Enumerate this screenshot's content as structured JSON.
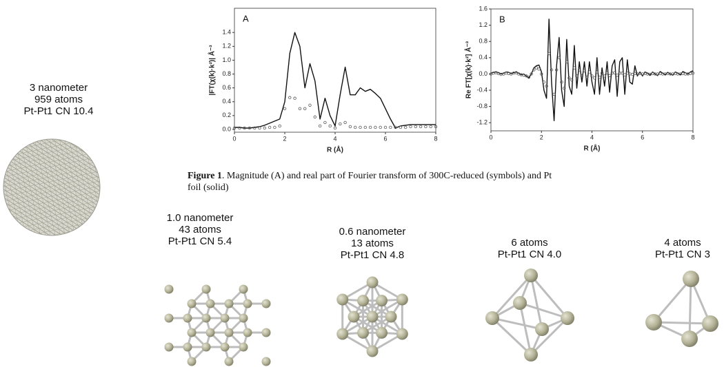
{
  "chart_data": [
    {
      "type": "line",
      "annotation": "A",
      "xlabel": "R (Å)",
      "ylabel": "|FT(χ(k)·k²)| Å⁻³",
      "x": [
        0,
        0.2,
        0.4,
        0.6,
        0.8,
        1.0,
        1.2,
        1.4,
        1.6,
        1.8,
        2.0,
        2.2,
        2.4,
        2.6,
        2.8,
        3.0,
        3.2,
        3.4,
        3.6,
        3.8,
        4.0,
        4.2,
        4.4,
        4.6,
        4.8,
        5.0,
        5.2,
        5.4,
        5.6,
        5.8,
        6.0,
        6.2,
        6.4,
        6.6,
        6.8,
        7.0,
        7.2,
        7.4,
        7.6,
        7.8,
        8.0
      ],
      "series": [
        {
          "style": "solid",
          "color": "#111111",
          "values": [
            0.03,
            0.03,
            0.02,
            0.02,
            0.03,
            0.04,
            0.06,
            0.09,
            0.12,
            0.15,
            0.4,
            1.1,
            1.4,
            1.2,
            0.6,
            0.95,
            0.7,
            0.15,
            0.45,
            0.2,
            0.05,
            0.5,
            0.9,
            0.5,
            0.5,
            0.6,
            0.55,
            0.58,
            0.52,
            0.45,
            0.3,
            0.15,
            0.02,
            0.05,
            0.06,
            0.07,
            0.07,
            0.07,
            0.07,
            0.07,
            0.07
          ]
        },
        {
          "style": "symbols",
          "color": "#555555",
          "values": [
            0.02,
            0.02,
            0.02,
            0.02,
            0.02,
            0.02,
            0.02,
            0.03,
            0.03,
            0.05,
            0.3,
            0.46,
            0.45,
            0.3,
            0.3,
            0.35,
            0.18,
            0.05,
            0.1,
            0.05,
            0.02,
            0.08,
            0.1,
            0.04,
            0.03,
            0.03,
            0.03,
            0.03,
            0.03,
            0.03,
            0.03,
            0.03,
            0.03,
            0.03,
            0.03,
            0.04,
            0.04,
            0.04,
            0.04,
            0.04,
            0.04
          ]
        }
      ],
      "xlim": [
        0,
        8
      ],
      "xticks": [
        0,
        2,
        4,
        6,
        8
      ],
      "ylim": [
        -0.04,
        1.75
      ],
      "yticks": [
        {
          "value": 0,
          "label": "0.0"
        },
        0.2,
        0.4,
        0.6,
        0.8,
        {
          "value": 1,
          "label": "1.0"
        },
        1.2,
        1.4
      ]
    },
    {
      "type": "line",
      "annotation": "B",
      "xlabel": "R (Å)",
      "ylabel": "Re FT[χ(k)·k²] Å⁻³",
      "x": [
        0,
        0.1,
        0.2,
        0.3,
        0.4,
        0.5,
        0.6,
        0.7,
        0.8,
        0.9,
        1.0,
        1.1,
        1.2,
        1.3,
        1.4,
        1.5,
        1.6,
        1.7,
        1.8,
        1.9,
        2.0,
        2.1,
        2.2,
        2.3,
        2.4,
        2.5,
        2.6,
        2.7,
        2.8,
        2.9,
        3.0,
        3.1,
        3.2,
        3.3,
        3.4,
        3.5,
        3.6,
        3.7,
        3.8,
        3.9,
        4.0,
        4.1,
        4.2,
        4.3,
        4.4,
        4.5,
        4.6,
        4.7,
        4.8,
        4.9,
        5.0,
        5.1,
        5.2,
        5.3,
        5.4,
        5.5,
        5.6,
        5.7,
        5.8,
        5.9,
        6.0,
        6.1,
        6.2,
        6.3,
        6.4,
        6.5,
        6.6,
        6.7,
        6.8,
        6.9,
        7.0,
        7.1,
        7.2,
        7.3,
        7.4,
        7.5,
        7.6,
        7.7,
        7.8,
        7.9,
        8.0
      ],
      "series": [
        {
          "style": "solid",
          "color": "#111111",
          "values": [
            0.02,
            0.04,
            0.05,
            0.03,
            0.0,
            0.02,
            0.05,
            0.04,
            0.01,
            0.03,
            0.05,
            0.02,
            -0.02,
            0.0,
            -0.05,
            -0.1,
            0.0,
            0.15,
            0.2,
            0.22,
            0.05,
            -0.4,
            -0.6,
            1.35,
            -0.2,
            -1.15,
            0.2,
            0.9,
            -0.4,
            -0.8,
            0.85,
            -0.3,
            -0.5,
            0.7,
            -0.35,
            0.3,
            -0.2,
            0.3,
            -0.3,
            0.3,
            -0.2,
            -0.5,
            0.4,
            -0.5,
            0.15,
            -0.3,
            0.3,
            -0.45,
            0.2,
            0.35,
            -0.55,
            0.3,
            0.4,
            -0.5,
            0.35,
            -0.2,
            -0.25,
            0.2,
            -0.05,
            0.05,
            -0.05,
            0.05,
            0.02,
            -0.03,
            0.05,
            0.0,
            -0.04,
            0.06,
            0.02,
            -0.02,
            0.04,
            0.0,
            -0.03,
            0.05,
            0.02,
            -0.02,
            0.06,
            0.03,
            0.0,
            0.05,
            0.08
          ]
        },
        {
          "style": "symbols",
          "color": "#555555",
          "values": [
            0.0,
            0.02,
            0.03,
            0.01,
            -0.01,
            0.0,
            0.02,
            0.01,
            0.0,
            0.02,
            0.03,
            0.0,
            -0.02,
            -0.03,
            -0.05,
            -0.08,
            0.0,
            0.1,
            0.15,
            0.12,
            0.0,
            -0.2,
            -0.3,
            0.5,
            0.1,
            -0.5,
            0.1,
            0.4,
            -0.2,
            -0.35,
            0.3,
            -0.1,
            -0.15,
            0.15,
            -0.05,
            0.1,
            -0.05,
            0.08,
            -0.08,
            0.05,
            -0.05,
            -0.1,
            0.05,
            -0.08,
            0.02,
            -0.05,
            0.03,
            -0.04,
            0.02,
            0.03,
            -0.03,
            0.02,
            0.02,
            -0.02,
            0.02,
            0.0,
            -0.01,
            0.01,
            0.0,
            0.01,
            0.0,
            0.01,
            0.0,
            -0.01,
            0.01,
            0.0,
            0.0,
            0.01,
            0.0,
            0.0,
            0.01,
            0.0,
            0.0,
            0.01,
            0.0,
            0.0,
            0.01,
            0.0,
            0.0,
            0.01,
            0.02
          ]
        }
      ],
      "xlim": [
        0,
        8
      ],
      "xticks": [
        0,
        2,
        4,
        6,
        8
      ],
      "ylim": [
        -1.4,
        1.6
      ],
      "yticks": [
        -1.2,
        -0.8,
        -0.4,
        {
          "value": 0,
          "label": "0.0"
        },
        0.4,
        0.8,
        1.2,
        1.6
      ]
    }
  ],
  "caption": {
    "label": "Figure 1",
    "text_line1": ". Magnitude (A) and real part of Fourier transform of 300C-reduced (symbols) and Pt",
    "text_line2": "foil (solid)"
  },
  "clusters": [
    {
      "lines": [
        "3 nanometer",
        "959 atoms",
        "Pt-Pt1 CN 10.4"
      ]
    },
    {
      "lines": [
        "1.0 nanometer",
        "43 atoms",
        "Pt-Pt1 CN  5.4"
      ]
    },
    {
      "lines": [
        "0.6 nanometer",
        "13 atoms",
        "Pt-Pt1 CN 4.8"
      ]
    },
    {
      "lines": [
        "6 atoms",
        "Pt-Pt1 CN 4.0"
      ]
    },
    {
      "lines": [
        "4 atoms",
        "Pt-Pt1 CN 3"
      ]
    }
  ]
}
